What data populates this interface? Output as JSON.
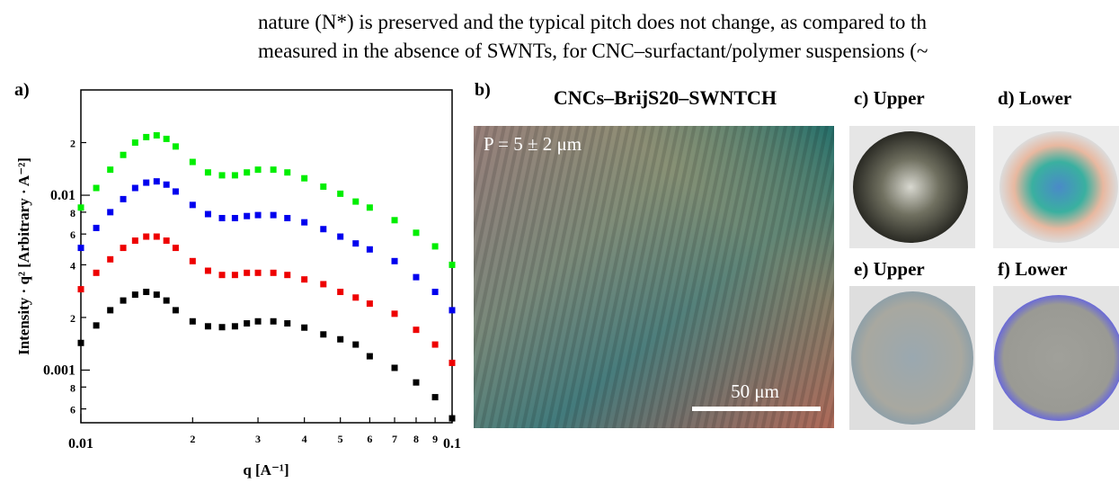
{
  "text": {
    "lines": [
      "nature (N*) is preserved and the typical pitch does not change, as compared to th",
      "measured in the absence of SWNTs, for CNC–surfactant/polymer suspensions (~"
    ]
  },
  "figure": {
    "panel_a_label": "a)",
    "panel_b_label": "b)",
    "panel_b_title": "CNCs–BrijS20–SWNTCH",
    "pitch": "P = 5 ± 2 μm",
    "scale_bar": "50 μm",
    "panel_c_label": "c) Upper",
    "panel_d_label": "d) Lower",
    "panel_e_label": "e) Upper",
    "panel_f_label": "f) Lower"
  },
  "chart_data": {
    "type": "scatter",
    "log_x": true,
    "log_y": true,
    "xlabel": "q [A⁻¹]",
    "ylabel": "Intensity · q² [Arbitrary · A⁻²]",
    "x": [
      0.01,
      0.011,
      0.012,
      0.013,
      0.014,
      0.015,
      0.016,
      0.017,
      0.018,
      0.02,
      0.022,
      0.024,
      0.026,
      0.028,
      0.03,
      0.033,
      0.036,
      0.04,
      0.045,
      0.05,
      0.055,
      0.06,
      0.07,
      0.08,
      0.09,
      0.1
    ],
    "series": [
      {
        "color": "#00ee00",
        "values": [
          0.0085,
          0.011,
          0.014,
          0.017,
          0.02,
          0.0215,
          0.022,
          0.021,
          0.019,
          0.0155,
          0.0135,
          0.013,
          0.013,
          0.0135,
          0.014,
          0.014,
          0.0135,
          0.0125,
          0.0112,
          0.0102,
          0.0092,
          0.0085,
          0.0072,
          0.0061,
          0.0051,
          0.004
        ]
      },
      {
        "color": "#0000ee",
        "values": [
          0.005,
          0.0065,
          0.008,
          0.0095,
          0.011,
          0.0118,
          0.012,
          0.0115,
          0.0105,
          0.0088,
          0.0078,
          0.0074,
          0.0074,
          0.0076,
          0.0077,
          0.0077,
          0.0074,
          0.007,
          0.0064,
          0.0058,
          0.0053,
          0.0049,
          0.0042,
          0.0034,
          0.0028,
          0.0022
        ]
      },
      {
        "color": "#ee0000",
        "values": [
          0.0029,
          0.0036,
          0.0043,
          0.005,
          0.0055,
          0.0058,
          0.0058,
          0.0055,
          0.005,
          0.0042,
          0.0037,
          0.0035,
          0.0035,
          0.0036,
          0.0036,
          0.0036,
          0.0035,
          0.0033,
          0.0031,
          0.0028,
          0.0026,
          0.0024,
          0.0021,
          0.0017,
          0.0014,
          0.0011
        ]
      },
      {
        "color": "#000000",
        "values": [
          0.00143,
          0.0018,
          0.0022,
          0.0025,
          0.0027,
          0.0028,
          0.0027,
          0.0025,
          0.0022,
          0.0019,
          0.00178,
          0.00176,
          0.00178,
          0.00185,
          0.0019,
          0.0019,
          0.00185,
          0.00175,
          0.0016,
          0.0015,
          0.0014,
          0.0012,
          0.00103,
          0.00085,
          0.0007,
          0.00053
        ]
      }
    ],
    "xlim": [
      0.01,
      0.1
    ],
    "xticks": [
      0.01,
      {
        "value": 0.02,
        "label": "2"
      },
      {
        "value": 0.03,
        "label": "3"
      },
      {
        "value": 0.04,
        "label": "4"
      },
      {
        "value": 0.05,
        "label": "5"
      },
      {
        "value": 0.06,
        "label": "6"
      },
      {
        "value": 0.07,
        "label": "7"
      },
      {
        "value": 0.08,
        "label": "8"
      },
      {
        "value": 0.09,
        "label": "9"
      },
      0.1
    ],
    "ylim": [
      0.0005,
      0.04
    ],
    "yticks": [
      {
        "value": 0.0006,
        "label": "6"
      },
      {
        "value": 0.0008,
        "label": "8"
      },
      0.001,
      {
        "value": 0.002,
        "label": "2"
      },
      {
        "value": 0.004,
        "label": "4"
      },
      {
        "value": 0.006,
        "label": "6"
      },
      {
        "value": 0.008,
        "label": "8"
      },
      0.01,
      {
        "value": 0.02,
        "label": "2"
      }
    ]
  }
}
